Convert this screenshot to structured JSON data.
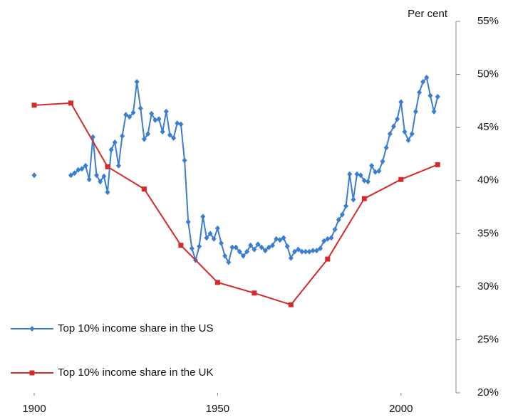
{
  "chart_data": {
    "type": "line",
    "y_label": "Per cent",
    "xlim": [
      1900,
      2015
    ],
    "xticks": [
      1900,
      1950,
      2000
    ],
    "ylim": [
      20,
      55
    ],
    "yticks": [
      {
        "value": 20,
        "label": "20%"
      },
      {
        "value": 25,
        "label": "25%"
      },
      {
        "value": 30,
        "label": "30%"
      },
      {
        "value": 35,
        "label": "35%"
      },
      {
        "value": 40,
        "label": "40%"
      },
      {
        "value": 45,
        "label": "45%"
      },
      {
        "value": 50,
        "label": "50%"
      },
      {
        "value": 55,
        "label": "55%"
      }
    ],
    "y_axis_side": "right",
    "grid": false,
    "legend": "lower left",
    "series": [
      {
        "name": "Top 10% income share in the US",
        "color": "#3b7dd0",
        "marker": "diamond",
        "x": [
          1900,
          1901,
          1902,
          1903,
          1904,
          1905,
          1906,
          1907,
          1908,
          1909,
          1910,
          1911,
          1912,
          1913,
          1914,
          1915,
          1916,
          1917,
          1918,
          1919,
          1920,
          1921,
          1922,
          1923,
          1924,
          1925,
          1926,
          1927,
          1928,
          1929,
          1930,
          1931,
          1932,
          1933,
          1934,
          1935,
          1936,
          1937,
          1938,
          1939,
          1940,
          1941,
          1942,
          1943,
          1944,
          1945,
          1946,
          1947,
          1948,
          1949,
          1950,
          1951,
          1952,
          1953,
          1954,
          1955,
          1956,
          1957,
          1958,
          1959,
          1960,
          1961,
          1962,
          1963,
          1964,
          1965,
          1966,
          1967,
          1968,
          1969,
          1970,
          1971,
          1972,
          1973,
          1974,
          1975,
          1976,
          1977,
          1978,
          1979,
          1980,
          1981,
          1982,
          1983,
          1984,
          1985,
          1986,
          1987,
          1988,
          1989,
          1990,
          1991,
          1992,
          1993,
          1994,
          1995,
          1996,
          1997,
          1998,
          1999,
          2000,
          2001,
          2002,
          2003,
          2004,
          2005,
          2006,
          2007,
          2008,
          2009,
          2010
        ],
        "values": [
          40.5,
          null,
          null,
          null,
          null,
          null,
          null,
          null,
          null,
          null,
          40.5,
          40.7,
          41.0,
          41.1,
          41.4,
          40.1,
          44.1,
          40.5,
          39.9,
          40.4,
          38.9,
          42.9,
          43.6,
          41.4,
          44.2,
          46.2,
          46.0,
          46.4,
          49.3,
          46.8,
          43.9,
          44.4,
          46.3,
          45.7,
          45.8,
          44.6,
          46.5,
          44.3,
          44.0,
          45.4,
          45.3,
          41.9,
          36.1,
          33.6,
          32.5,
          33.8,
          36.6,
          34.6,
          35.0,
          34.5,
          35.5,
          34.1,
          32.9,
          32.3,
          33.7,
          33.7,
          33.3,
          32.9,
          33.3,
          33.9,
          33.5,
          34.0,
          33.7,
          33.4,
          33.7,
          33.9,
          34.5,
          34.4,
          34.6,
          33.8,
          32.7,
          33.3,
          33.5,
          33.3,
          33.3,
          33.3,
          33.4,
          33.4,
          33.6,
          34.3,
          34.5,
          34.6,
          35.4,
          36.3,
          36.8,
          37.6,
          40.6,
          38.2,
          40.6,
          40.5,
          40.0,
          39.9,
          41.4,
          40.8,
          40.9,
          41.8,
          43.1,
          44.4,
          45.1,
          45.8,
          47.4,
          44.6,
          43.8,
          44.4,
          46.5,
          48.3,
          49.3,
          49.7,
          48.0,
          46.5,
          47.9
        ]
      },
      {
        "name": "Top 10% income share in the UK",
        "color": "#d42a2a",
        "marker": "square",
        "x": [
          1900,
          1910,
          1920,
          1930,
          1940,
          1950,
          1960,
          1970,
          1980,
          1990,
          2000,
          2010
        ],
        "values": [
          47.1,
          47.3,
          41.3,
          39.2,
          33.9,
          30.4,
          29.4,
          28.3,
          32.6,
          38.3,
          40.1,
          41.5
        ]
      }
    ]
  }
}
